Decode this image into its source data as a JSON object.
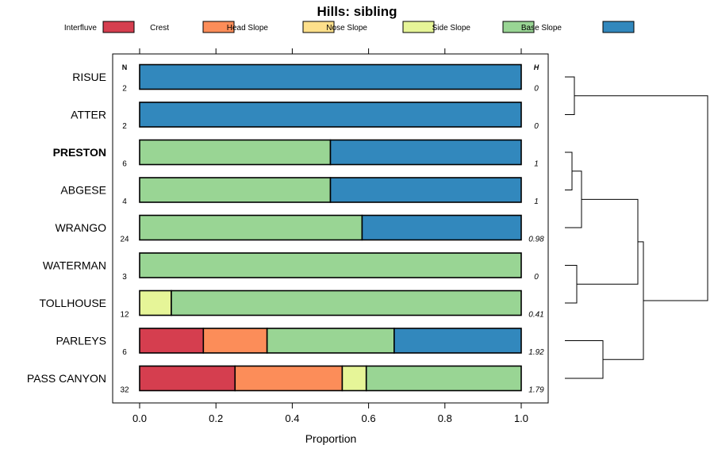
{
  "chart_data": {
    "type": "bar",
    "stacked": true,
    "orientation": "horizontal",
    "title": "Hills: sibling",
    "xlabel": "Proportion",
    "xlim": [
      0,
      1
    ],
    "xticks": [
      "0.0",
      "0.2",
      "0.4",
      "0.6",
      "0.8",
      "1.0"
    ],
    "n_header": "N",
    "h_header": "H",
    "legend_position": "top",
    "classes": [
      {
        "name": "Interfluve",
        "color": "#d53e4f"
      },
      {
        "name": "Crest",
        "color": "#fc8d59"
      },
      {
        "name": "Head Slope",
        "color": "#fee08b"
      },
      {
        "name": "Nose Slope",
        "color": "#e6f598"
      },
      {
        "name": "Side Slope",
        "color": "#99d594"
      },
      {
        "name": "Base Slope",
        "color": "#3288bd"
      }
    ],
    "rows": [
      {
        "label": "RISUE",
        "n": "2",
        "h": "0",
        "bold": false,
        "values": [
          0,
          0,
          0,
          0,
          0,
          1
        ]
      },
      {
        "label": "ATTER",
        "n": "2",
        "h": "0",
        "bold": false,
        "values": [
          0,
          0,
          0,
          0,
          0,
          1
        ]
      },
      {
        "label": "PRESTON",
        "n": "6",
        "h": "1",
        "bold": true,
        "values": [
          0,
          0,
          0,
          0,
          0.5,
          0.5
        ]
      },
      {
        "label": "ABGESE",
        "n": "4",
        "h": "1",
        "bold": false,
        "values": [
          0,
          0,
          0,
          0,
          0.5,
          0.5
        ]
      },
      {
        "label": "WRANGO",
        "n": "24",
        "h": "0.98",
        "bold": false,
        "values": [
          0,
          0,
          0,
          0,
          0.583,
          0.417
        ]
      },
      {
        "label": "WATERMAN",
        "n": "3",
        "h": "0",
        "bold": false,
        "values": [
          0,
          0,
          0,
          0,
          1,
          0
        ]
      },
      {
        "label": "TOLLHOUSE",
        "n": "12",
        "h": "0.41",
        "bold": false,
        "values": [
          0,
          0,
          0,
          0.083,
          0.917,
          0
        ]
      },
      {
        "label": "PARLEYS",
        "n": "6",
        "h": "1.92",
        "bold": false,
        "values": [
          0.167,
          0.167,
          0,
          0,
          0.333,
          0.333
        ]
      },
      {
        "label": "PASS CANYON",
        "n": "32",
        "h": "1.79",
        "bold": false,
        "values": [
          0.25,
          0.281,
          0,
          0.063,
          0.406,
          0
        ]
      }
    ],
    "dendrogram": "hierarchical clustering of rows (right side)"
  }
}
